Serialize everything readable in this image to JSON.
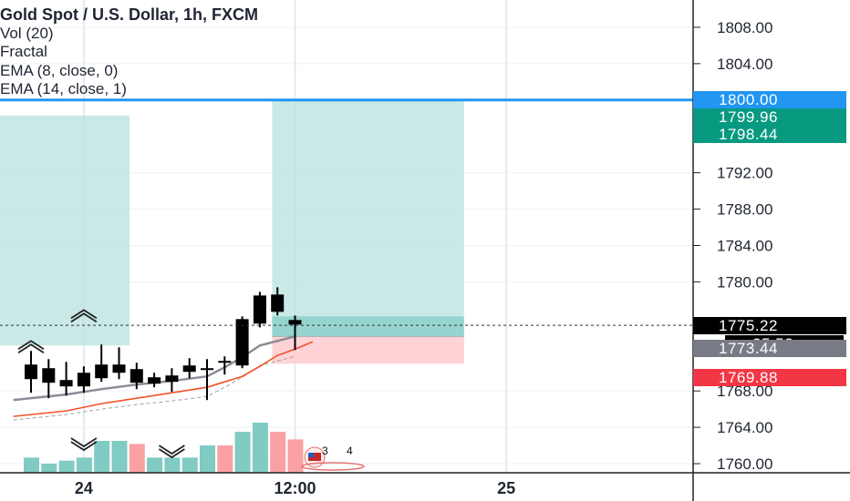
{
  "chart_data": {
    "type": "candlestick",
    "title": "Gold Spot / U.S. Dollar, 1h, FXCM",
    "indicators": [
      "Vol (20)",
      "Fractal",
      "EMA (8, close, 0)",
      "EMA (14, close, 1)"
    ],
    "y_ticks": [
      1808,
      1804,
      1792,
      1788,
      1784,
      1780,
      1768,
      1764,
      1760
    ],
    "y_tick_labels": [
      "1808.00",
      "1804.00",
      "1792.00",
      "1788.00",
      "1784.00",
      "1780.00",
      "1768.00",
      "1764.00",
      "1760.00"
    ],
    "ylim": [
      1759,
      1811
    ],
    "x_labels": [
      {
        "label": "24",
        "t": 3
      },
      {
        "label": "12:00",
        "t": 15
      },
      {
        "label": "25",
        "t": 27
      }
    ],
    "xlim": [
      0.3,
      38
    ],
    "price_tags": [
      {
        "name": "horizontal-level",
        "value": "1800.00",
        "price": 1800.0,
        "color": "#2196f3"
      },
      {
        "name": "target-upper",
        "value": "1799.96",
        "price": 1799.96,
        "color": "#089981"
      },
      {
        "name": "target-lower",
        "value": "1798.44",
        "price": 1798.44,
        "color": "#089981"
      },
      {
        "name": "last-price",
        "value": "1775.22",
        "price": 1775.22,
        "color": "#000000"
      },
      {
        "name": "countdown",
        "value": "25:52",
        "color": "#000000"
      },
      {
        "name": "ema-fast",
        "value": "1773.44",
        "price": 1773.44,
        "color": "#787b86"
      },
      {
        "name": "ema-slow",
        "value": "1769.88",
        "price": 1769.88,
        "color": "#f23645"
      }
    ],
    "candles": [
      {
        "t": 0,
        "o": 1770.9,
        "h": 1772.4,
        "l": 1767.8,
        "c": 1769.3
      },
      {
        "t": 1,
        "o": 1770.5,
        "h": 1771.5,
        "l": 1767.2,
        "c": 1768.9
      },
      {
        "t": 2,
        "o": 1769.2,
        "h": 1771.2,
        "l": 1767.5,
        "c": 1768.5
      },
      {
        "t": 3,
        "o": 1768.5,
        "h": 1770.7,
        "l": 1767.8,
        "c": 1770.0
      },
      {
        "t": 4,
        "o": 1769.4,
        "h": 1773.1,
        "l": 1769.0,
        "c": 1770.9
      },
      {
        "t": 5,
        "o": 1770.9,
        "h": 1772.8,
        "l": 1769.3,
        "c": 1770.0
      },
      {
        "t": 6,
        "o": 1770.4,
        "h": 1771.1,
        "l": 1768.2,
        "c": 1768.9
      },
      {
        "t": 7,
        "o": 1768.8,
        "h": 1770.0,
        "l": 1768.4,
        "c": 1769.5
      },
      {
        "t": 8,
        "o": 1769.0,
        "h": 1770.5,
        "l": 1767.9,
        "c": 1769.7
      },
      {
        "t": 9,
        "o": 1770.1,
        "h": 1771.6,
        "l": 1769.4,
        "c": 1770.8
      },
      {
        "t": 10,
        "o": 1770.5,
        "h": 1771.5,
        "l": 1767.0,
        "c": 1770.5
      },
      {
        "t": 11,
        "o": 1771.3,
        "h": 1771.8,
        "l": 1769.8,
        "c": 1771.2
      },
      {
        "t": 12,
        "o": 1770.8,
        "h": 1776.2,
        "l": 1770.5,
        "c": 1775.9
      },
      {
        "t": 13,
        "o": 1775.4,
        "h": 1778.9,
        "l": 1775.0,
        "c": 1778.5
      },
      {
        "t": 14,
        "o": 1778.6,
        "h": 1779.4,
        "l": 1776.3,
        "c": 1776.7
      },
      {
        "t": 15,
        "o": 1775.8,
        "h": 1776.3,
        "l": 1772.5,
        "c": 1775.3
      }
    ],
    "ema_fast": [
      {
        "t": -1,
        "v": 1767.0
      },
      {
        "t": 2,
        "v": 1767.6
      },
      {
        "t": 4,
        "v": 1768.2
      },
      {
        "t": 6,
        "v": 1768.7
      },
      {
        "t": 8,
        "v": 1769.1
      },
      {
        "t": 10,
        "v": 1769.6
      },
      {
        "t": 11,
        "v": 1770.6
      },
      {
        "t": 12,
        "v": 1771.7
      },
      {
        "t": 13,
        "v": 1773.0
      },
      {
        "t": 14,
        "v": 1773.5
      },
      {
        "t": 15,
        "v": 1774.0
      }
    ],
    "ema_slow": [
      {
        "t": -1,
        "v": 1765.2
      },
      {
        "t": 2,
        "v": 1765.8
      },
      {
        "t": 4,
        "v": 1766.6
      },
      {
        "t": 6,
        "v": 1767.2
      },
      {
        "t": 8,
        "v": 1767.8
      },
      {
        "t": 10,
        "v": 1768.4
      },
      {
        "t": 11,
        "v": 1769.0
      },
      {
        "t": 12,
        "v": 1769.6
      },
      {
        "t": 13,
        "v": 1770.7
      },
      {
        "t": 14,
        "v": 1771.9
      },
      {
        "t": 15,
        "v": 1772.6
      },
      {
        "t": 16,
        "v": 1773.4
      }
    ],
    "volume": [
      {
        "t": 0,
        "v": 1.0,
        "color": "#80cbc4"
      },
      {
        "t": 1,
        "v": 0.6,
        "color": "#80cbc4"
      },
      {
        "t": 2,
        "v": 0.8,
        "color": "#80cbc4"
      },
      {
        "t": 3,
        "v": 1.0,
        "color": "#80cbc4"
      },
      {
        "t": 4,
        "v": 2.1,
        "color": "#80cbc4"
      },
      {
        "t": 5,
        "v": 2.1,
        "color": "#80cbc4"
      },
      {
        "t": 6,
        "v": 1.9,
        "color": "#faa1a4"
      },
      {
        "t": 7,
        "v": 1.0,
        "color": "#80cbc4"
      },
      {
        "t": 8,
        "v": 1.0,
        "color": "#80cbc4"
      },
      {
        "t": 9,
        "v": 1.0,
        "color": "#80cbc4"
      },
      {
        "t": 10,
        "v": 1.8,
        "color": "#80cbc4"
      },
      {
        "t": 11,
        "v": 1.8,
        "color": "#faa1a4"
      },
      {
        "t": 12,
        "v": 2.7,
        "color": "#80cbc4"
      },
      {
        "t": 13,
        "v": 3.3,
        "color": "#80cbc4"
      },
      {
        "t": 14,
        "v": 2.7,
        "color": "#faa1a4"
      },
      {
        "t": 15,
        "v": 2.2,
        "color": "#faa1a4"
      }
    ],
    "volume_max": 5.4,
    "fractals": [
      {
        "t": 3,
        "dir": "up",
        "price": 1776.6
      },
      {
        "t": 0,
        "dir": "up",
        "price": 1773.2
      },
      {
        "t": 3,
        "dir": "down",
        "price": 1761.8
      },
      {
        "t": 8,
        "dir": "down",
        "price": 1761.0
      }
    ],
    "positions": [
      {
        "name": "position-left",
        "t0": -2,
        "t1": 5.6,
        "top": 1798.3,
        "mid": 1773.0,
        "bottom": 1759,
        "profit_color": "#b2dfdb"
      },
      {
        "name": "position-right",
        "t0": 13.7,
        "t1": 24.6,
        "top": 1800.0,
        "mid": 1774.0,
        "bottom": 1771.0,
        "profit_color": "#b2dfdb",
        "loss_color": "#ffcdd2"
      }
    ],
    "horizontal_line": 1800.0,
    "last_price_line": 1775.22,
    "event_badges": [
      "3",
      "4"
    ]
  }
}
